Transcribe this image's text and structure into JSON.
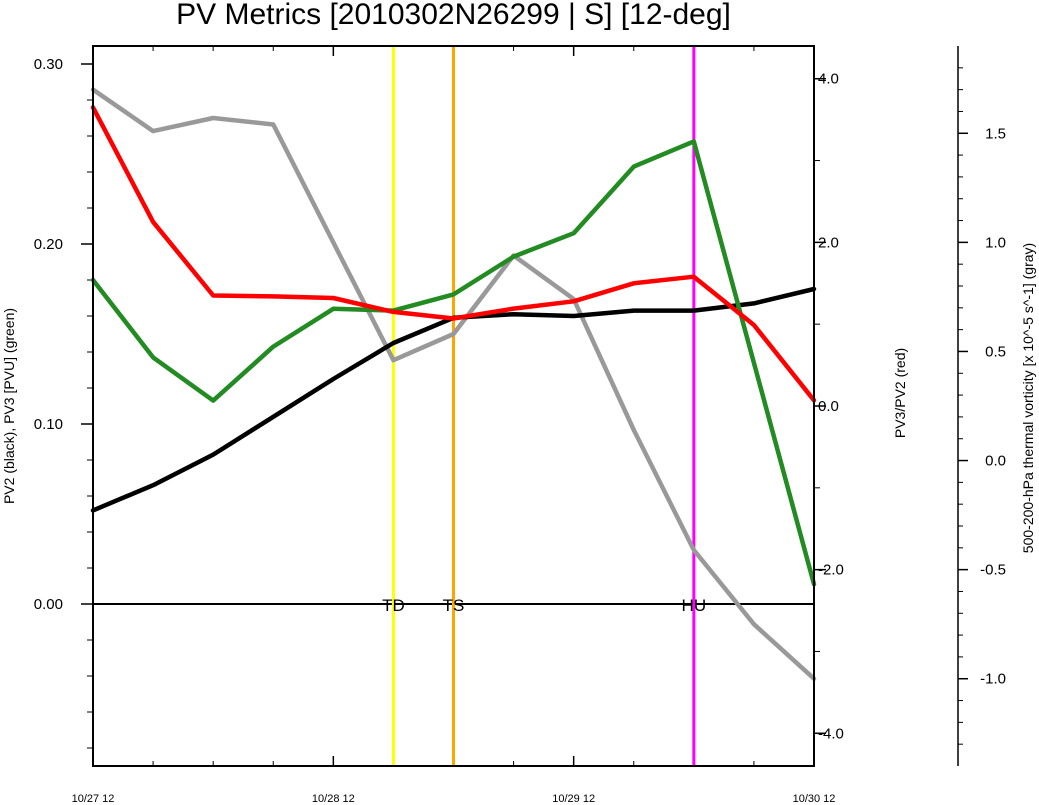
{
  "chart_data": {
    "type": "line",
    "title": "PV Metrics [2010302N26299 | S] [12-deg]",
    "x_tick_labels": [
      "10/27 12",
      "10/28 12",
      "10/29 12",
      "10/30 12"
    ],
    "x_tick_values": [
      0,
      24,
      48,
      72
    ],
    "x_range": [
      0,
      72
    ],
    "left_axis": {
      "label": "PV2 (black), PV3 [PVU] (green)",
      "range": [
        -0.09,
        0.31
      ],
      "major_ticks": [
        0.0,
        0.1,
        0.2,
        0.3
      ],
      "tick_labels": [
        "0.00",
        "0.10",
        "0.20",
        "0.30"
      ]
    },
    "right_axis": {
      "label": "PV3/PV2 (red)",
      "range": [
        -4.4,
        4.4
      ],
      "major_ticks": [
        -4.0,
        -2.0,
        0.0,
        2.0,
        4.0
      ],
      "tick_labels": [
        "-4.0",
        "-2.0",
        "0.0",
        "2.0",
        "4.0"
      ]
    },
    "far_right_axis": {
      "label": "500-200-hPa thermal vorticity [x 10^-5 s^-1] (gray)",
      "range": [
        -1.4,
        1.9
      ],
      "major_ticks": [
        -1.0,
        -0.5,
        0.0,
        0.5,
        1.0,
        1.5
      ],
      "tick_labels": [
        "-1.0",
        "-0.5",
        "0.0",
        "0.5",
        "1.0",
        "1.5"
      ]
    },
    "series": [
      {
        "color": "#000000",
        "axis": "left",
        "x": [
          0,
          6,
          12,
          18,
          24,
          30,
          36,
          42,
          48,
          54,
          60,
          66,
          72
        ],
        "y": [
          0.052,
          0.066,
          0.083,
          0.104,
          0.125,
          0.145,
          0.159,
          0.161,
          0.16,
          0.163,
          0.163,
          0.167,
          0.175
        ]
      },
      {
        "color": "#228b22",
        "axis": "left",
        "x": [
          0,
          6,
          12,
          18,
          24,
          30,
          36,
          42,
          48,
          54,
          60,
          72
        ],
        "y": [
          0.18,
          0.137,
          0.113,
          0.143,
          0.164,
          0.163,
          0.172,
          0.193,
          0.206,
          0.243,
          0.257,
          0.011
        ]
      },
      {
        "color": "#ff0000",
        "axis": "right",
        "x": [
          0,
          6,
          12,
          18,
          24,
          30,
          36,
          42,
          48,
          54,
          60,
          66,
          72
        ],
        "y": [
          3.65,
          2.25,
          1.35,
          1.34,
          1.32,
          1.15,
          1.07,
          1.19,
          1.28,
          1.5,
          1.58,
          0.99,
          0.07
        ]
      },
      {
        "color": "#999999",
        "axis": "far_right",
        "x": [
          0,
          6,
          12,
          18,
          24,
          30,
          36,
          42,
          48,
          54,
          60,
          66,
          72
        ],
        "y": [
          1.7,
          1.51,
          1.57,
          1.54,
          1.0,
          0.46,
          0.58,
          0.94,
          0.74,
          0.14,
          -0.41,
          -0.75,
          -1.0
        ]
      }
    ],
    "event_lines": [
      {
        "label": "TD",
        "x": 30,
        "color": "#ffff00"
      },
      {
        "label": "TS",
        "x": 36,
        "color": "#ffa500"
      },
      {
        "label": "HU",
        "x": 60,
        "color": "#ff00ff"
      }
    ],
    "zero_line": 0.0,
    "grid": false,
    "legend": "none"
  }
}
